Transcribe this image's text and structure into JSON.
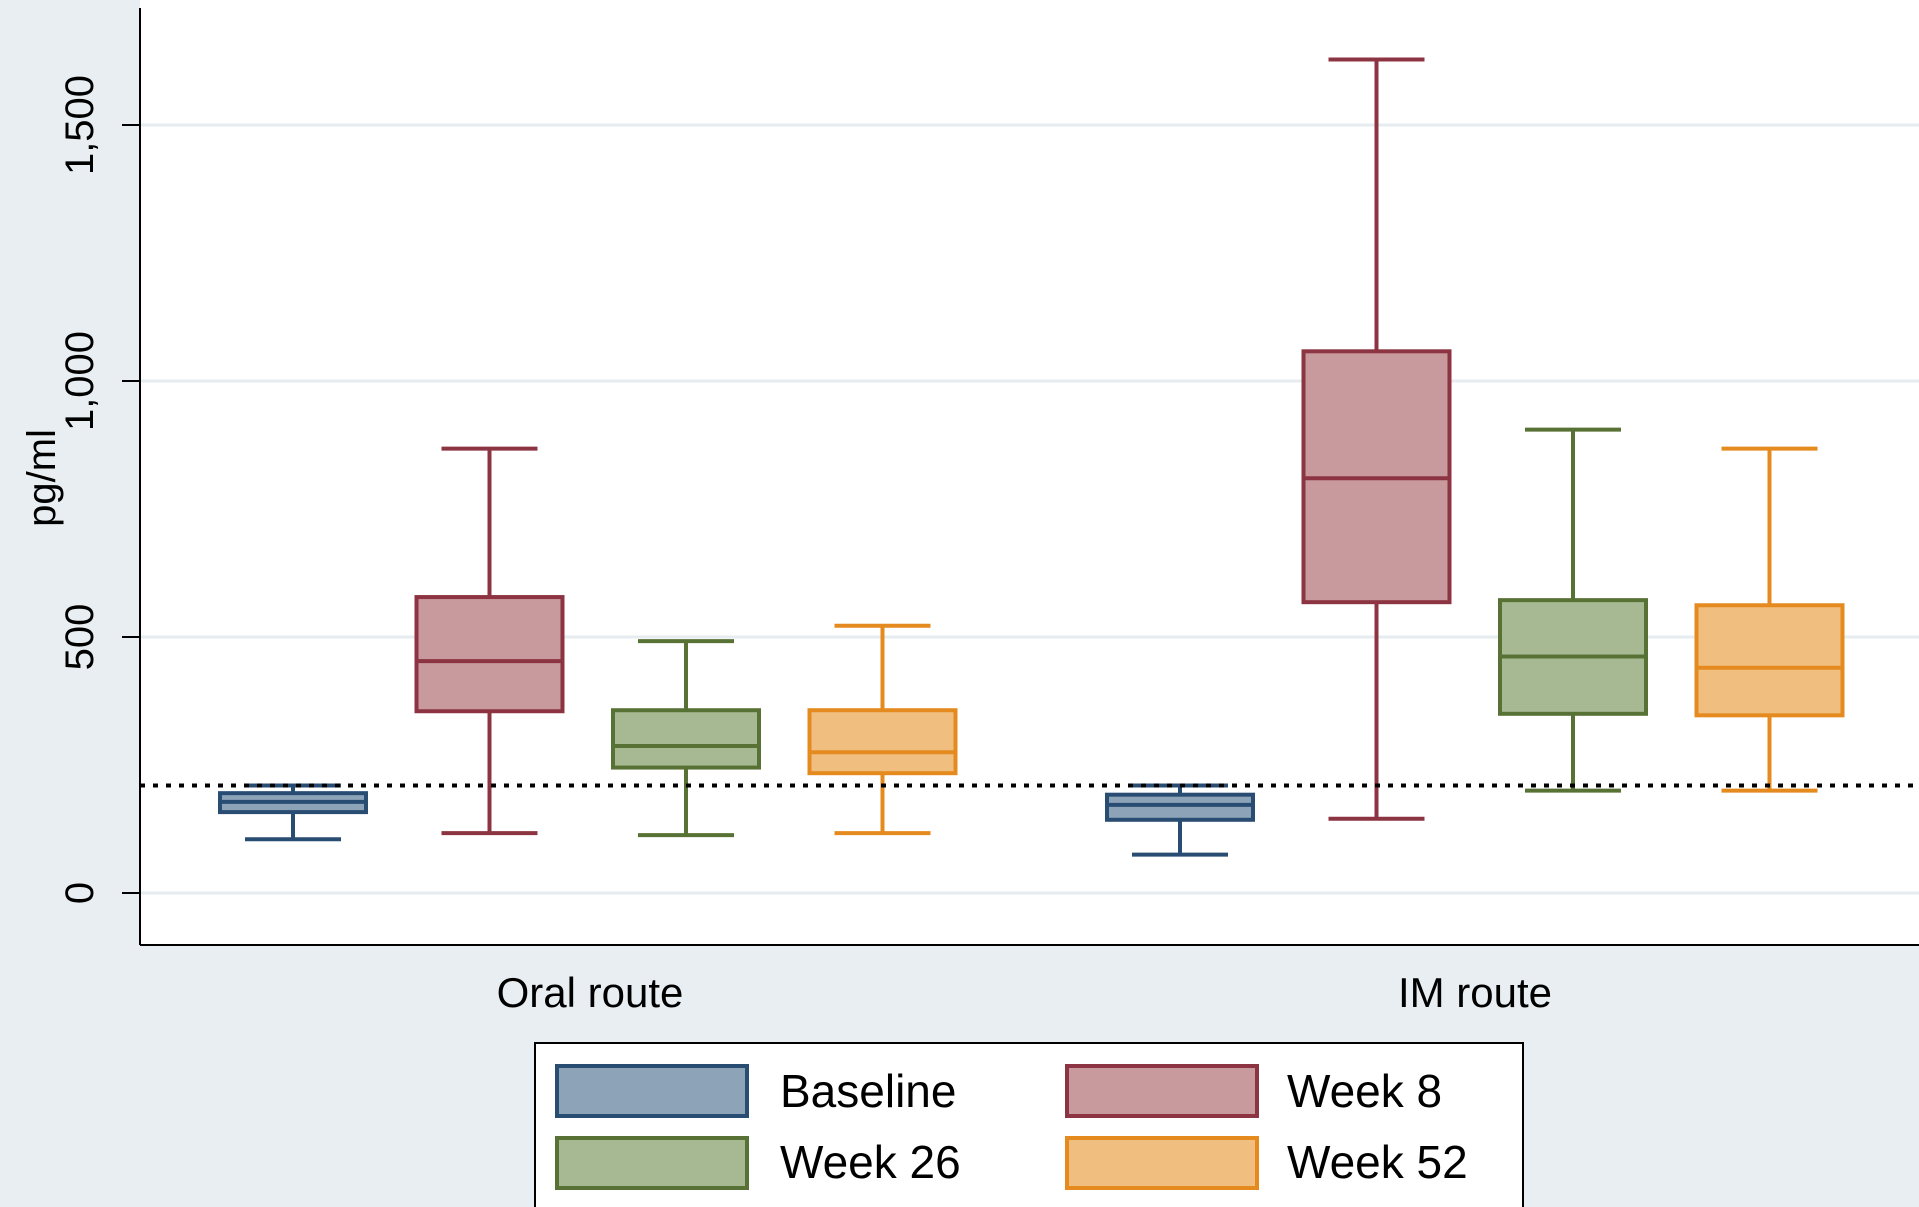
{
  "chart_data": {
    "type": "boxplot",
    "ylabel": "pg/ml",
    "ylim": [
      -100,
      1720
    ],
    "yticks": [
      0,
      500,
      1000,
      1500
    ],
    "ytick_labels": [
      "0",
      "500",
      "1,000",
      "1,500"
    ],
    "grid": true,
    "legend_position": "bottom",
    "reference_line": 210,
    "categories": [
      "Oral route",
      "IM route"
    ],
    "series": [
      {
        "name": "Baseline",
        "fill": "#8ca3b8",
        "stroke": "#294c73",
        "boxes": [
          {
            "whisker_low": 105,
            "q1": 158,
            "median": 178,
            "q3": 195,
            "whisker_high": 210
          },
          {
            "whisker_low": 75,
            "q1": 143,
            "median": 172,
            "q3": 192,
            "whisker_high": 210
          }
        ]
      },
      {
        "name": "Week 8",
        "fill": "#c8999d",
        "stroke": "#8c3441",
        "boxes": [
          {
            "whisker_low": 117,
            "q1": 355,
            "median": 453,
            "q3": 578,
            "whisker_high": 868
          },
          {
            "whisker_low": 145,
            "q1": 568,
            "median": 810,
            "q3": 1058,
            "whisker_high": 1628
          }
        ]
      },
      {
        "name": "Week 26",
        "fill": "#a7b993",
        "stroke": "#587235",
        "boxes": [
          {
            "whisker_low": 113,
            "q1": 245,
            "median": 287,
            "q3": 357,
            "whisker_high": 492
          },
          {
            "whisker_low": 200,
            "q1": 350,
            "median": 462,
            "q3": 572,
            "whisker_high": 905
          }
        ]
      },
      {
        "name": "Week 52",
        "fill": "#f0bf80",
        "stroke": "#e48a1f",
        "boxes": [
          {
            "whisker_low": 117,
            "q1": 234,
            "median": 275,
            "q3": 357,
            "whisker_high": 522
          },
          {
            "whisker_low": 200,
            "q1": 347,
            "median": 440,
            "q3": 562,
            "whisker_high": 868
          }
        ]
      }
    ]
  }
}
